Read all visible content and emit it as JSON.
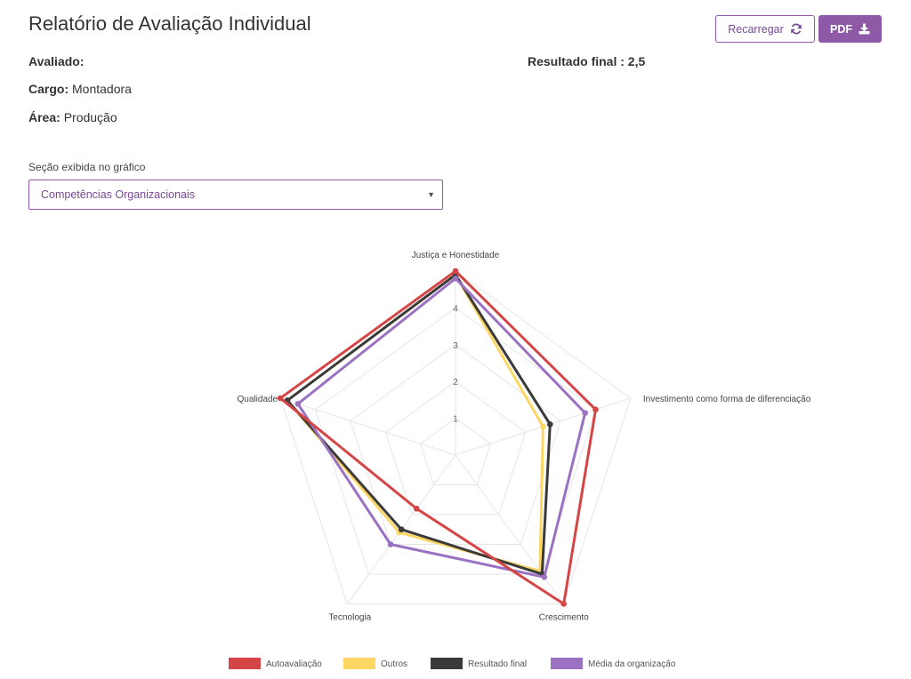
{
  "header": {
    "title": "Relatório de Avaliação Individual",
    "reload_label": "Recarregar",
    "pdf_label": "PDF"
  },
  "info": {
    "avaliado_label": "Avaliado:",
    "avaliado_value": "",
    "cargo_label": "Cargo:",
    "cargo_value": "Montadora",
    "area_label": "Área:",
    "area_value": "Produção",
    "result_label": "Resultado final :",
    "result_value": "2,5"
  },
  "section_select": {
    "label": "Seção exibida no gráfico",
    "value": "Competências Organizacionais"
  },
  "chart_data": {
    "type": "radar",
    "axes": [
      "Justiça e Honestidade",
      "Investimento como forma de diferenciação",
      "Crescimento",
      "Tecnologia",
      "Qualidade"
    ],
    "scale": {
      "min": 0,
      "max": 5,
      "ticks": [
        "1",
        "2",
        "3",
        "4",
        "5"
      ]
    },
    "series": [
      {
        "name": "Autoavaliação",
        "color": "#d64545",
        "values": [
          5.0,
          4.0,
          5.0,
          1.8,
          5.0
        ]
      },
      {
        "name": "Outros",
        "color": "#fdd663",
        "values": [
          4.9,
          2.5,
          3.9,
          2.6,
          4.8
        ]
      },
      {
        "name": "Resultado final",
        "color": "#3a3a3a",
        "values": [
          4.9,
          2.7,
          4.0,
          2.5,
          4.8
        ]
      },
      {
        "name": "Média da organização",
        "color": "#9b72c2",
        "values": [
          4.8,
          3.7,
          4.1,
          3.0,
          4.5
        ]
      }
    ],
    "legend_position": "bottom",
    "grid": true
  }
}
